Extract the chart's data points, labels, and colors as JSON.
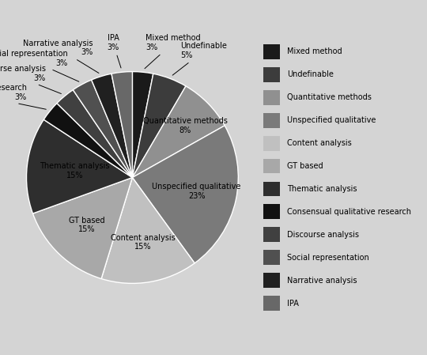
{
  "labels": [
    "Mixed method",
    "Undefinable",
    "Quantitative methods",
    "Unspecified qualitative",
    "Content analysis",
    "GT based",
    "Thematic analysis",
    "Consensual qualitative research",
    "Discourse analysis",
    "Social representation",
    "Narrative analysis",
    "IPA"
  ],
  "values": [
    3,
    5,
    8,
    22,
    14,
    14,
    14,
    3,
    3,
    3,
    3,
    3
  ],
  "colors": [
    "#1a1a1a",
    "#3c3c3c",
    "#909090",
    "#7a7a7a",
    "#c0c0c0",
    "#a8a8a8",
    "#2e2e2e",
    "#111111",
    "#404040",
    "#505050",
    "#202020",
    "#686868"
  ],
  "background_color": "#d4d4d4",
  "legend_labels": [
    "Mixed method",
    "Undefinable",
    "Quantitative methods",
    "Unspecified qualitative",
    "Content analysis",
    "GT based",
    "Thematic analysis",
    "Consensual qualitative research",
    "Discourse analysis",
    "Social representation",
    "Narrative analysis",
    "IPA"
  ],
  "startangle": 90,
  "label_fontsize": 7,
  "legend_fontsize": 7
}
